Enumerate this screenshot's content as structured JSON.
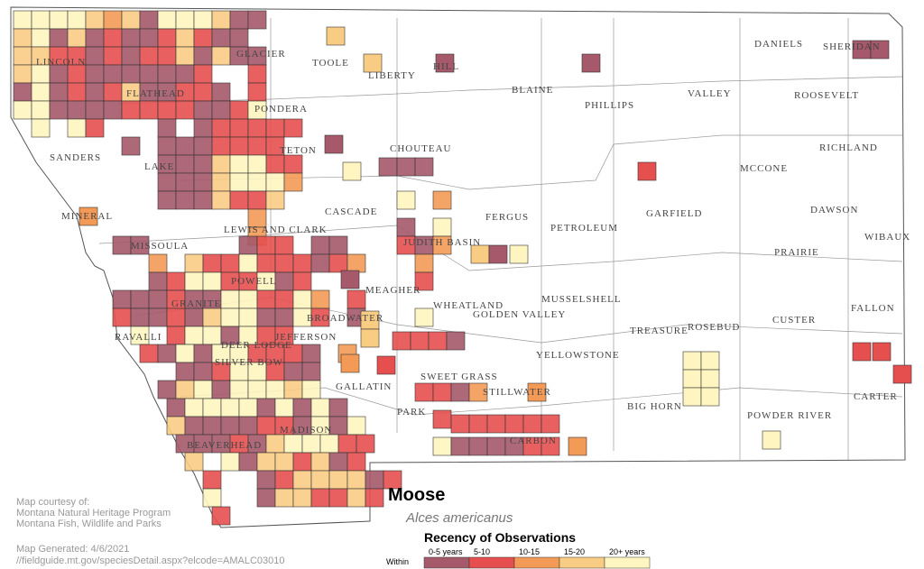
{
  "title": "Moose",
  "subtitle": "Alces americanus",
  "legend": {
    "title": "Recency of Observations",
    "prefix": "Within",
    "items": [
      {
        "label": "0-5 years",
        "color": "#a5596a"
      },
      {
        "label": "5-10",
        "color": "#e5504f"
      },
      {
        "label": "10-15",
        "color": "#f39a57"
      },
      {
        "label": "15-20",
        "color": "#f9cc84"
      },
      {
        "label": "20+ years",
        "color": "#fff5c0"
      }
    ]
  },
  "credits": [
    "Map courtesy of:",
    "Montana Natural Heritage Program",
    "Montana Fish, Wildlife and Parks"
  ],
  "generated": "Map Generated: 4/6/2021",
  "url": "//fieldguide.mt.gov/speciesDetail.aspx?elcode=AMALC03010",
  "counties": [
    "LINCOLN",
    "FLATHEAD",
    "GLACIER",
    "TOOLE",
    "LIBERTY",
    "HILL",
    "BLAINE",
    "PHILLIPS",
    "VALLEY",
    "DANIELS",
    "SHERIDAN",
    "ROOSEVELT",
    "PONDERA",
    "SANDERS",
    "LAKE",
    "TETON",
    "CHOUTEAU",
    "RICHLAND",
    "MCCONE",
    "GARFIELD",
    "MINERAL",
    "CASCADE",
    "FERGUS",
    "PETROLEUM",
    "DAWSON",
    "LEWIS AND CLARK",
    "JUDITH BASIN",
    "WIBAUX",
    "PRAIRIE",
    "MISSOULA",
    "POWELL",
    "MEAGHER",
    "WHEATLAND",
    "GOLDEN VALLEY",
    "MUSSELSHELL",
    "FALLON",
    "GRANITE",
    "BROADWATER",
    "RAVALLI",
    "JEFFERSON",
    "DEER LODGE",
    "SILVER BOW",
    "TREASURE",
    "ROSEBUD",
    "CUSTER",
    "YELLOWSTONE",
    "SWEET GRASS",
    "STILLWATER",
    "GALLATIN",
    "BIG HORN",
    "CARTER",
    "PARK",
    "POWDER RIVER",
    "BEAVERHEAD",
    "MADISON",
    "CARBON"
  ]
}
